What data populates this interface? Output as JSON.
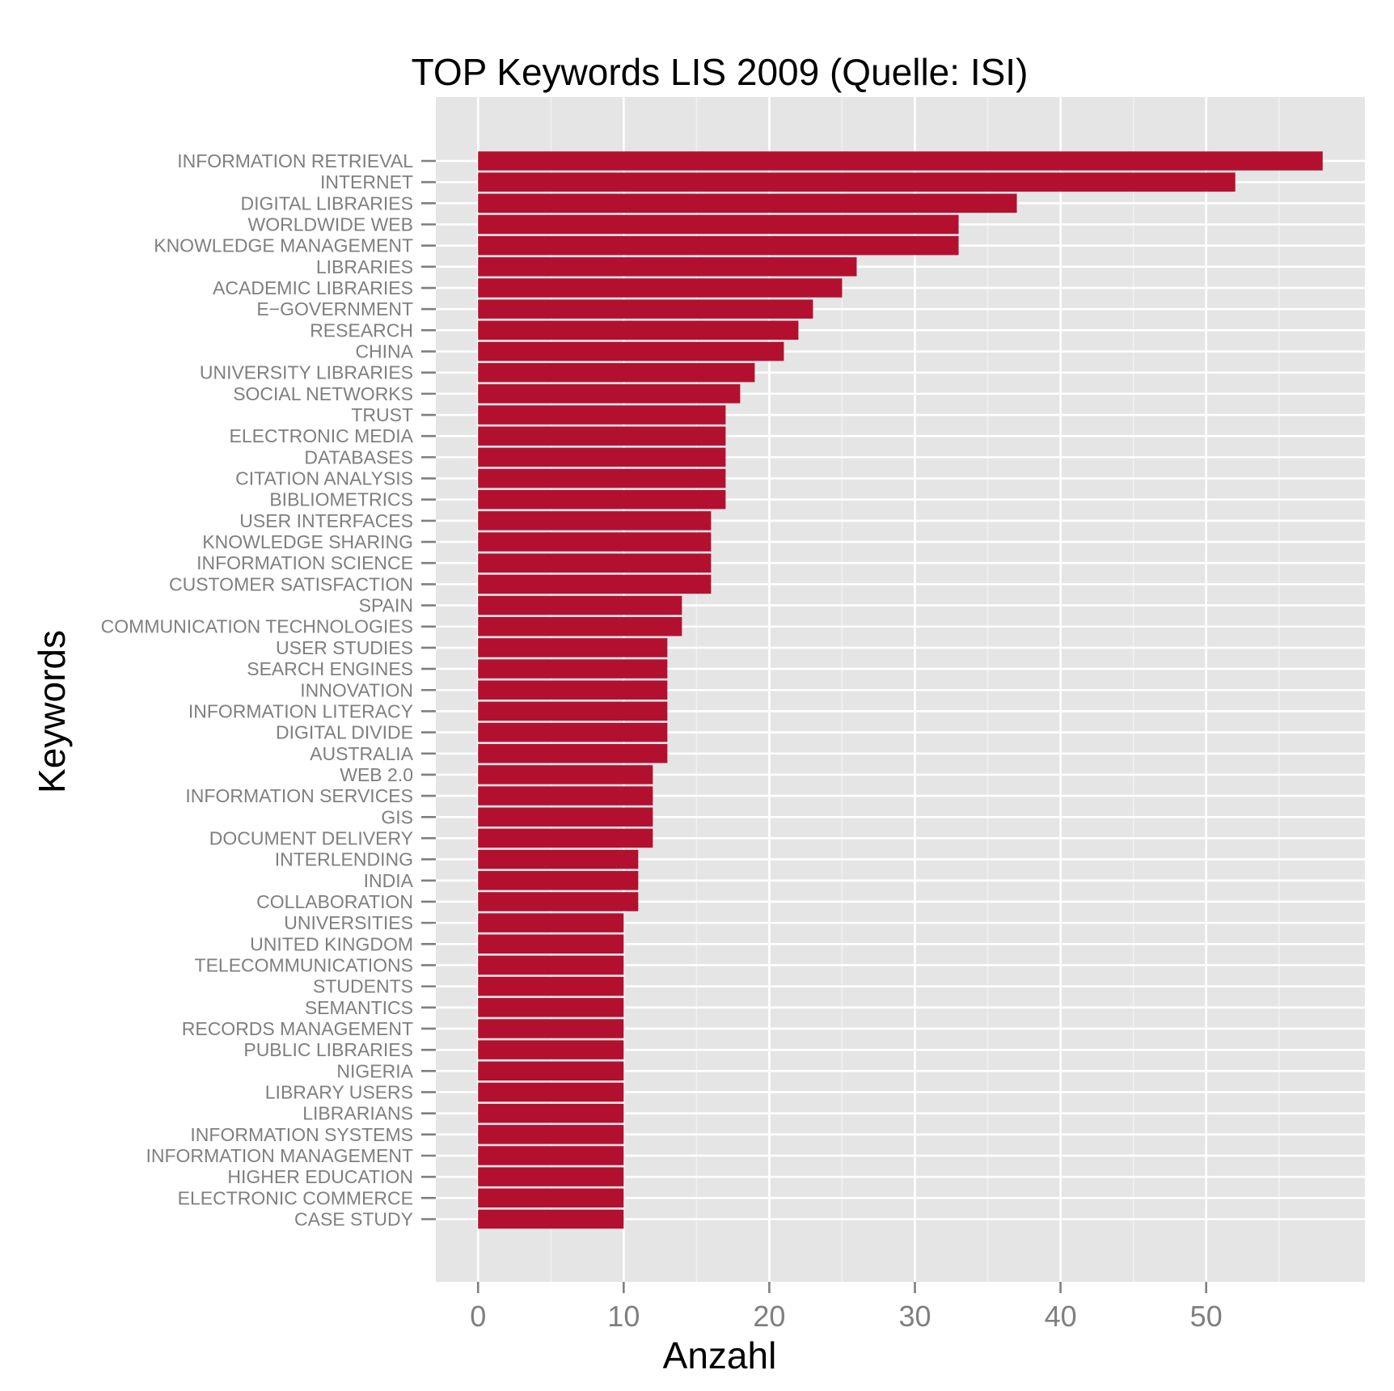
{
  "chart_data": {
    "type": "bar",
    "orientation": "horizontal",
    "title": "TOP Keywords LIS 2009 (Quelle: ISI)",
    "xlabel": "Anzahl",
    "ylabel": "Keywords",
    "xlim": [
      -2.9,
      60.9
    ],
    "xticks": [
      0,
      10,
      20,
      30,
      40,
      50
    ],
    "grid": true,
    "legend": "none",
    "colors": {
      "bar": "#b31030",
      "panel_background": "#e5e5e5",
      "grid_major": "#ffffff",
      "grid_minor": "#f2f2f2",
      "tick_label": "#7f7f7f",
      "text": "#000000"
    },
    "categories": [
      "INFORMATION RETRIEVAL",
      "INTERNET",
      "DIGITAL LIBRARIES",
      "WORLDWIDE WEB",
      "KNOWLEDGE MANAGEMENT",
      "LIBRARIES",
      "ACADEMIC LIBRARIES",
      "E−GOVERNMENT",
      "RESEARCH",
      "CHINA",
      "UNIVERSITY LIBRARIES",
      "SOCIAL NETWORKS",
      "TRUST",
      "ELECTRONIC MEDIA",
      "DATABASES",
      "CITATION ANALYSIS",
      "BIBLIOMETRICS",
      "USER INTERFACES",
      "KNOWLEDGE SHARING",
      "INFORMATION SCIENCE",
      "CUSTOMER SATISFACTION",
      "SPAIN",
      "COMMUNICATION TECHNOLOGIES",
      "USER STUDIES",
      "SEARCH ENGINES",
      "INNOVATION",
      "INFORMATION LITERACY",
      "DIGITAL DIVIDE",
      "AUSTRALIA",
      "WEB 2.0",
      "INFORMATION SERVICES",
      "GIS",
      "DOCUMENT DELIVERY",
      "INTERLENDING",
      "INDIA",
      "COLLABORATION",
      "UNIVERSITIES",
      "UNITED KINGDOM",
      "TELECOMMUNICATIONS",
      "STUDENTS",
      "SEMANTICS",
      "RECORDS MANAGEMENT",
      "PUBLIC LIBRARIES",
      "NIGERIA",
      "LIBRARY USERS",
      "LIBRARIANS",
      "INFORMATION SYSTEMS",
      "INFORMATION MANAGEMENT",
      "HIGHER EDUCATION",
      "ELECTRONIC COMMERCE",
      "CASE STUDY"
    ],
    "values": [
      58,
      52,
      37,
      33,
      33,
      26,
      25,
      23,
      22,
      21,
      19,
      18,
      17,
      17,
      17,
      17,
      17,
      16,
      16,
      16,
      16,
      14,
      14,
      13,
      13,
      13,
      13,
      13,
      13,
      12,
      12,
      12,
      12,
      11,
      11,
      11,
      10,
      10,
      10,
      10,
      10,
      10,
      10,
      10,
      10,
      10,
      10,
      10,
      10,
      10,
      10
    ]
  }
}
